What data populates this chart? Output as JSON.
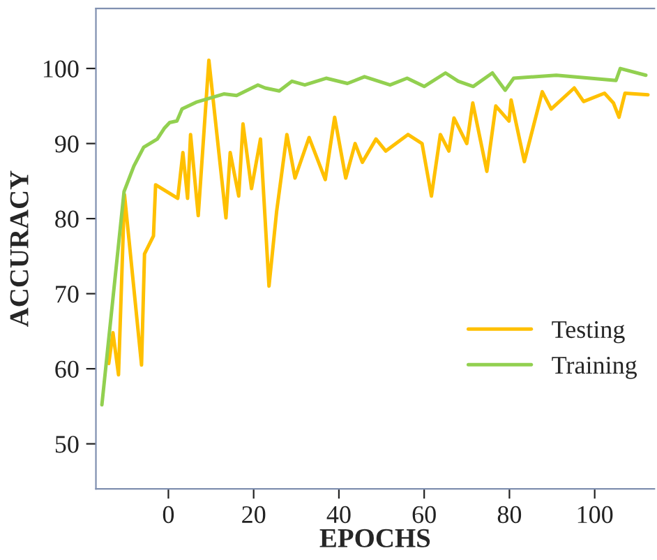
{
  "chart_data": {
    "type": "line",
    "xlabel": "EPOCHS",
    "ylabel": "ACCURACY",
    "xlim": [
      -17,
      114
    ],
    "ylim": [
      44,
      108
    ],
    "xticks": [
      0,
      20,
      40,
      60,
      80,
      100
    ],
    "yticks": [
      50,
      60,
      70,
      80,
      90,
      100
    ],
    "grid": false,
    "legend": "right",
    "marker": "none",
    "line_style": "solid",
    "series": [
      {
        "name": "Testing",
        "color": "#ffc000",
        "x": [
          -14,
          -13,
          -11.7,
          -10.3,
          -6.3,
          -5.6,
          -3.5,
          -3,
          2.2,
          3.4,
          4.5,
          5.2,
          7,
          9.5,
          13.5,
          14.5,
          16.5,
          17.5,
          19.5,
          21.6,
          23.6,
          25.4,
          27.8,
          29.7,
          33,
          36.8,
          39,
          41.6,
          43.8,
          45.5,
          48.7,
          51,
          56.2,
          59.5,
          61.7,
          63.8,
          65.8,
          67,
          70,
          71.4,
          74.7,
          76.8,
          79.9,
          80.4,
          83.5,
          87.7,
          89.8,
          95.2,
          97.4,
          102.3,
          104.4,
          105.7,
          107.1,
          112.5
        ],
        "values": [
          60.7,
          64.8,
          59.2,
          83.2,
          60.5,
          75.3,
          77.7,
          84.5,
          82.7,
          88.8,
          82.7,
          91.2,
          80.4,
          101.1,
          80.1,
          88.8,
          83,
          92.6,
          84,
          90.6,
          71,
          81,
          91.2,
          85.4,
          90.8,
          85.2,
          93.5,
          85.4,
          90,
          87.5,
          90.6,
          89,
          91.2,
          90,
          83,
          91.2,
          89,
          93.4,
          90,
          95.4,
          86.3,
          95,
          93,
          95.8,
          87.6,
          96.9,
          94.6,
          97.4,
          95.6,
          96.7,
          95.4,
          93.5,
          96.7,
          96.5
        ]
      },
      {
        "name": "Training",
        "color": "#92d050",
        "x": [
          -15.6,
          -10.4,
          -8.1,
          -5.8,
          -2.6,
          -1,
          0.3,
          2,
          3.2,
          6.5,
          13,
          16,
          21,
          22.7,
          26,
          29,
          32,
          37,
          42,
          46,
          52,
          56,
          60,
          65,
          68,
          71.5,
          76,
          79,
          81,
          91,
          105,
          106,
          112
        ],
        "values": [
          55.2,
          83.6,
          87,
          89.5,
          90.6,
          92,
          92.8,
          93,
          94.6,
          95.5,
          96.6,
          96.4,
          97.8,
          97.4,
          97,
          98.3,
          97.8,
          98.7,
          98,
          98.9,
          97.8,
          98.7,
          97.6,
          99.4,
          98.3,
          97.6,
          99.4,
          97.1,
          98.7,
          99.1,
          98.4,
          100,
          99.1
        ]
      }
    ]
  }
}
